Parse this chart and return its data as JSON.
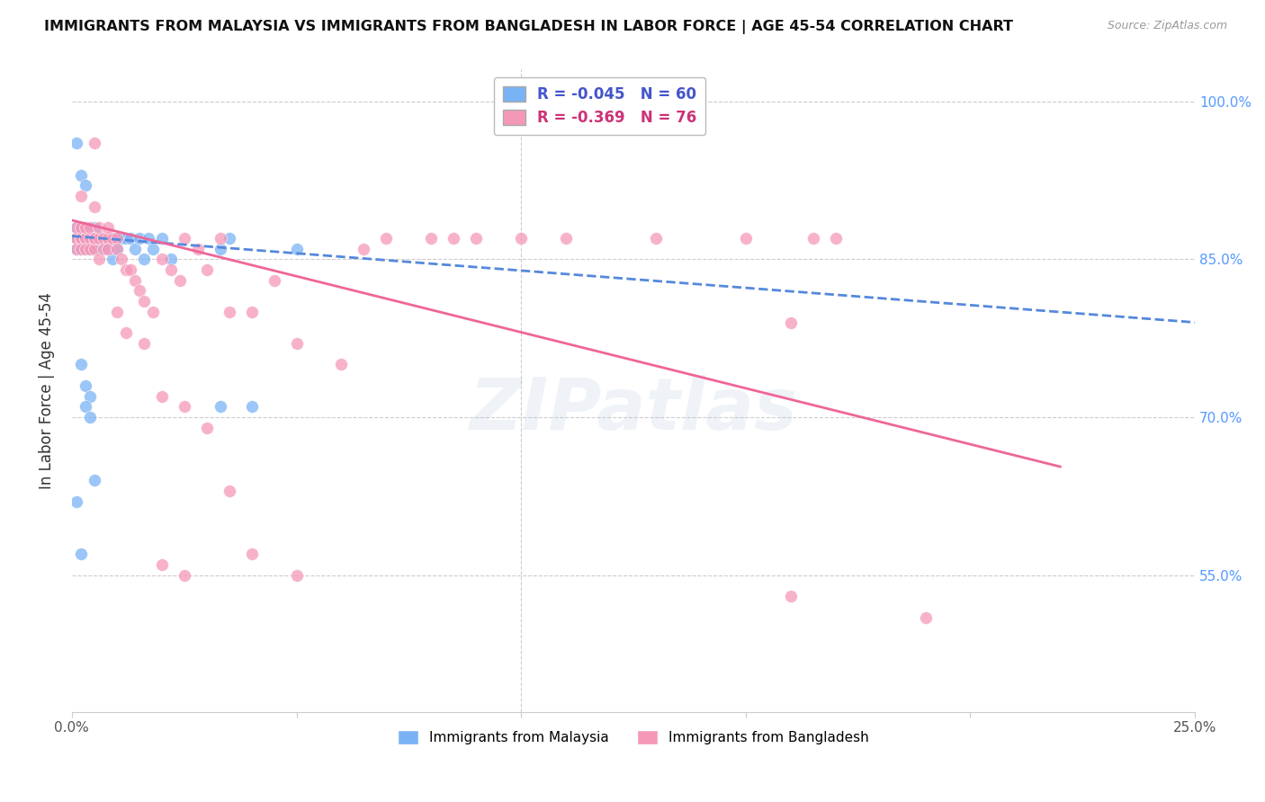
{
  "title": "IMMIGRANTS FROM MALAYSIA VS IMMIGRANTS FROM BANGLADESH IN LABOR FORCE | AGE 45-54 CORRELATION CHART",
  "source": "Source: ZipAtlas.com",
  "ylabel": "In Labor Force | Age 45-54",
  "yaxis_labels": [
    "100.0%",
    "85.0%",
    "70.0%",
    "55.0%"
  ],
  "yaxis_values": [
    1.0,
    0.85,
    0.7,
    0.55
  ],
  "xmin": 0.0,
  "xmax": 0.25,
  "ymin": 0.42,
  "ymax": 1.03,
  "malaysia_color": "#7ab3f5",
  "bangladesh_color": "#f598b8",
  "malaysia_line_color": "#5588dd",
  "bangladesh_line_color": "#ee6699",
  "malaysia_R": -0.045,
  "malaysia_N": 60,
  "bangladesh_R": -0.369,
  "bangladesh_N": 76,
  "watermark": "ZIPatlas",
  "malaysia_x": [
    0.001,
    0.001,
    0.001,
    0.001,
    0.001,
    0.002,
    0.002,
    0.002,
    0.002,
    0.002,
    0.002,
    0.002,
    0.003,
    0.003,
    0.003,
    0.003,
    0.003,
    0.004,
    0.004,
    0.004,
    0.005,
    0.005,
    0.005,
    0.006,
    0.006,
    0.006,
    0.007,
    0.007,
    0.008,
    0.008,
    0.009,
    0.009,
    0.01,
    0.01,
    0.011,
    0.012,
    0.013,
    0.014,
    0.015,
    0.016,
    0.017,
    0.018,
    0.02,
    0.022,
    0.001,
    0.002,
    0.003,
    0.002,
    0.003,
    0.004,
    0.001,
    0.002,
    0.003,
    0.004,
    0.005,
    0.033,
    0.033,
    0.035,
    0.04,
    0.05
  ],
  "malaysia_y": [
    0.87,
    0.87,
    0.87,
    0.88,
    0.86,
    0.87,
    0.87,
    0.87,
    0.87,
    0.88,
    0.86,
    0.87,
    0.87,
    0.87,
    0.88,
    0.86,
    0.87,
    0.87,
    0.87,
    0.86,
    0.87,
    0.87,
    0.88,
    0.87,
    0.86,
    0.87,
    0.87,
    0.86,
    0.87,
    0.86,
    0.87,
    0.85,
    0.87,
    0.86,
    0.87,
    0.87,
    0.87,
    0.86,
    0.87,
    0.85,
    0.87,
    0.86,
    0.87,
    0.85,
    0.96,
    0.93,
    0.92,
    0.75,
    0.73,
    0.72,
    0.62,
    0.57,
    0.71,
    0.7,
    0.64,
    0.86,
    0.71,
    0.87,
    0.71,
    0.86
  ],
  "bangladesh_x": [
    0.001,
    0.001,
    0.001,
    0.001,
    0.002,
    0.002,
    0.002,
    0.002,
    0.002,
    0.003,
    0.003,
    0.003,
    0.003,
    0.004,
    0.004,
    0.004,
    0.005,
    0.005,
    0.005,
    0.006,
    0.006,
    0.006,
    0.007,
    0.007,
    0.008,
    0.008,
    0.009,
    0.01,
    0.01,
    0.011,
    0.012,
    0.013,
    0.014,
    0.015,
    0.016,
    0.018,
    0.02,
    0.022,
    0.024,
    0.025,
    0.028,
    0.03,
    0.033,
    0.035,
    0.04,
    0.045,
    0.05,
    0.06,
    0.065,
    0.07,
    0.08,
    0.085,
    0.09,
    0.1,
    0.11,
    0.13,
    0.15,
    0.16,
    0.165,
    0.17,
    0.005,
    0.008,
    0.01,
    0.012,
    0.016,
    0.02,
    0.025,
    0.03,
    0.035,
    0.04,
    0.05,
    0.16,
    0.19,
    0.005,
    0.02,
    0.025
  ],
  "bangladesh_y": [
    0.87,
    0.87,
    0.88,
    0.86,
    0.87,
    0.87,
    0.88,
    0.86,
    0.91,
    0.87,
    0.87,
    0.88,
    0.86,
    0.87,
    0.88,
    0.86,
    0.87,
    0.86,
    0.87,
    0.87,
    0.88,
    0.85,
    0.87,
    0.86,
    0.87,
    0.86,
    0.87,
    0.87,
    0.86,
    0.85,
    0.84,
    0.84,
    0.83,
    0.82,
    0.81,
    0.8,
    0.85,
    0.84,
    0.83,
    0.87,
    0.86,
    0.84,
    0.87,
    0.8,
    0.8,
    0.83,
    0.77,
    0.75,
    0.86,
    0.87,
    0.87,
    0.87,
    0.87,
    0.87,
    0.87,
    0.87,
    0.87,
    0.79,
    0.87,
    0.87,
    0.9,
    0.88,
    0.8,
    0.78,
    0.77,
    0.72,
    0.71,
    0.69,
    0.63,
    0.57,
    0.55,
    0.53,
    0.51,
    0.96,
    0.56,
    0.55
  ],
  "mal_line_x": [
    0.0,
    0.25
  ],
  "mal_line_y": [
    0.872,
    0.79
  ],
  "ban_line_x": [
    0.0,
    0.22
  ],
  "ban_line_y": [
    0.887,
    0.653
  ]
}
